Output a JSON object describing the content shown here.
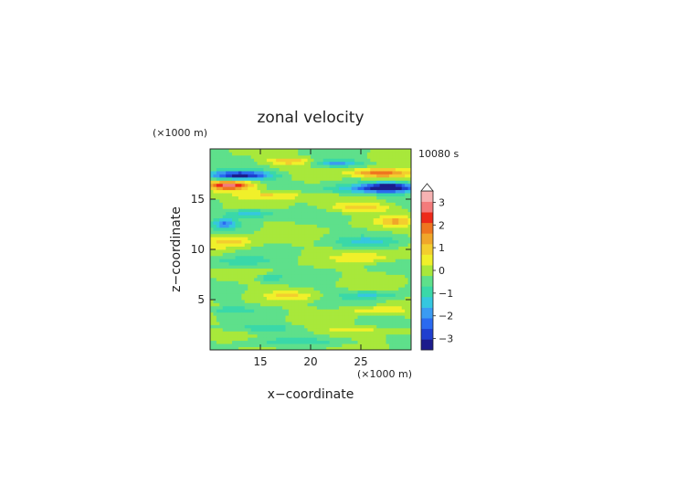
{
  "chart_data": {
    "type": "heatmap",
    "title": "zonal velocity",
    "time_label": "10080 s",
    "xlabel": "x−coordinate",
    "ylabel": "z−coordinate",
    "x_unit": "(×1000 m)",
    "y_unit": "(×1000 m)",
    "xlim": [
      10,
      30
    ],
    "ylim": [
      0,
      20
    ],
    "x_ticks": [
      15,
      20,
      25
    ],
    "y_ticks": [
      5,
      10,
      15
    ],
    "colorbar": {
      "levels": [
        -3.5,
        -3,
        -2.5,
        -2,
        -1.5,
        -1,
        -0.5,
        0,
        0.5,
        1,
        1.5,
        2,
        2.5,
        3,
        3.5
      ],
      "colors": [
        "#1c1c8c",
        "#1f3fcf",
        "#2a6af0",
        "#3a9bf2",
        "#35c7df",
        "#3ad8a8",
        "#5ee08b",
        "#a8e83b",
        "#f0f02a",
        "#f3ce2e",
        "#f0a62a",
        "#ef7520",
        "#ed2a1a",
        "#f37b7b",
        "#f7b2b2"
      ],
      "tick_values": [
        3,
        2,
        1,
        0,
        -1,
        -2,
        -3
      ],
      "tick_labels": [
        "3",
        "2",
        "1",
        "0",
        "−1",
        "−2",
        "−3"
      ],
      "extend": "max"
    },
    "features": [
      {
        "x": 18,
        "z": 18.8,
        "v": 1.4,
        "sx": 2.5,
        "sz": 0.35
      },
      {
        "x": 13,
        "z": 17.4,
        "v": -3.2,
        "sx": 3.2,
        "sz": 0.45
      },
      {
        "x": 27,
        "z": 17.6,
        "v": 2.6,
        "sx": 3.0,
        "sz": 0.45
      },
      {
        "x": 22.5,
        "z": 18.6,
        "v": -1.6,
        "sx": 2.6,
        "sz": 0.35
      },
      {
        "x": 12,
        "z": 16.4,
        "v": 3.0,
        "sx": 2.2,
        "sz": 0.45
      },
      {
        "x": 28,
        "z": 16.2,
        "v": -3.3,
        "sx": 2.5,
        "sz": 0.45
      },
      {
        "x": 16,
        "z": 15.4,
        "v": 1.3,
        "sx": 3.5,
        "sz": 0.5
      },
      {
        "x": 25,
        "z": 16.0,
        "v": -1.5,
        "sx": 4.0,
        "sz": 0.5
      },
      {
        "x": 14,
        "z": 13.6,
        "v": -1.6,
        "sx": 2.3,
        "sz": 0.45
      },
      {
        "x": 25,
        "z": 14.2,
        "v": 1.3,
        "sx": 3.0,
        "sz": 0.5
      },
      {
        "x": 11.5,
        "z": 12.6,
        "v": -1.8,
        "sx": 1.2,
        "sz": 0.5
      },
      {
        "x": 28.5,
        "z": 12.8,
        "v": 1.4,
        "sx": 1.6,
        "sz": 0.5
      },
      {
        "x": 12,
        "z": 10.8,
        "v": 1.2,
        "sx": 2.5,
        "sz": 0.6
      },
      {
        "x": 26,
        "z": 10.8,
        "v": -1.0,
        "sx": 3.5,
        "sz": 0.5
      },
      {
        "x": 13,
        "z": 8.8,
        "v": -0.9,
        "sx": 3.0,
        "sz": 0.5
      },
      {
        "x": 26,
        "z": 9.2,
        "v": 0.9,
        "sx": 3.0,
        "sz": 0.5
      },
      {
        "x": 16,
        "z": 7.2,
        "v": -1.0,
        "sx": 1.2,
        "sz": 0.3
      },
      {
        "x": 18,
        "z": 5.4,
        "v": 0.9,
        "sx": 2.5,
        "sz": 0.4
      },
      {
        "x": 26,
        "z": 5.5,
        "v": -1.0,
        "sx": 3.0,
        "sz": 0.4
      },
      {
        "x": 12,
        "z": 4.0,
        "v": -0.9,
        "sx": 2.0,
        "sz": 0.3
      },
      {
        "x": 26,
        "z": 4.0,
        "v": 0.9,
        "sx": 3.0,
        "sz": 0.3
      },
      {
        "x": 15,
        "z": 2.2,
        "v": -0.8,
        "sx": 4.0,
        "sz": 0.4
      },
      {
        "x": 25,
        "z": 2.0,
        "v": 0.8,
        "sx": 4.0,
        "sz": 0.4
      },
      {
        "x": 20,
        "z": 0.8,
        "v": -0.6,
        "sx": 6.0,
        "sz": 0.4
      }
    ]
  }
}
